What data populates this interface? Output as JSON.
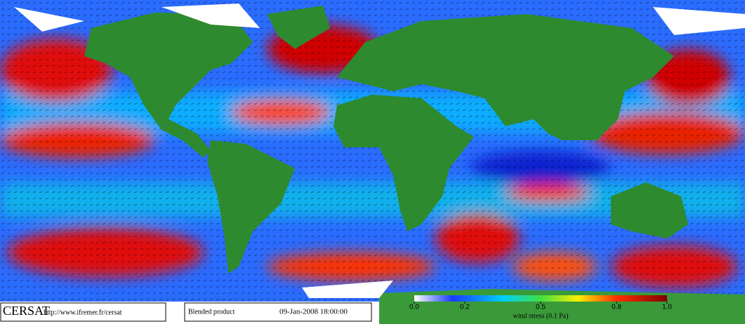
{
  "footer": {
    "logo": "CERSAT",
    "url": "http://www.ifremer.fr/cersat",
    "product": "Blended product",
    "date": "09-Jan-2008 18:00:00"
  },
  "colorbar": {
    "label": "wind stress (0.1 Pa)",
    "ticks": [
      {
        "value": 0,
        "label": "0.0"
      },
      0.2,
      0.5,
      0.8,
      {
        "value": 1,
        "label": "1.0"
      }
    ]
  }
}
